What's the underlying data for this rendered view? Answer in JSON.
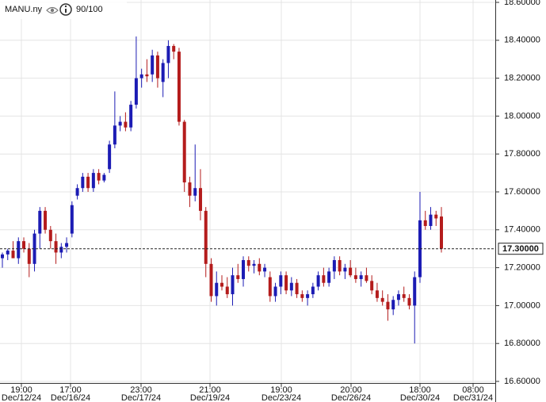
{
  "chart_data": {
    "type": "candlestick",
    "symbol": "MANU.ny",
    "counter": "90/100",
    "up_color": "#1c1cb4",
    "down_color": "#b41c1c",
    "grid": true,
    "ylim": [
      16.6,
      18.6
    ],
    "yticks": [
      {
        "value": 16.6,
        "label": "16.60000"
      },
      {
        "value": 16.8,
        "label": "16.80000"
      },
      {
        "value": 17.0,
        "label": "17.00000"
      },
      {
        "value": 17.2,
        "label": "17.20000"
      },
      {
        "value": 17.4,
        "label": "17.40000"
      },
      {
        "value": 17.6,
        "label": "17.60000"
      },
      {
        "value": 17.8,
        "label": "17.80000"
      },
      {
        "value": 18.0,
        "label": "18.00000"
      },
      {
        "value": 18.2,
        "label": "18.20000"
      },
      {
        "value": 18.4,
        "label": "18.40000"
      },
      {
        "value": 18.6,
        "label": "18.60000"
      }
    ],
    "last_price": {
      "value": 17.3,
      "label": "17.30000"
    },
    "xticks": [
      {
        "time": "19:00",
        "date": "Dec/12/24"
      },
      {
        "time": "17:00",
        "date": "Dec/16/24"
      },
      {
        "time": "23:00",
        "date": "Dec/17/24"
      },
      {
        "time": "21:00",
        "date": "Dec/19/24"
      },
      {
        "time": "19:00",
        "date": "Dec/23/24"
      },
      {
        "time": "20:00",
        "date": "Dec/26/24"
      },
      {
        "time": "18:00",
        "date": "Dec/30/24"
      },
      {
        "time": "08:00",
        "date": "Dec/31/24"
      }
    ],
    "open": [
      17.25,
      17.27,
      17.29,
      17.25,
      17.34,
      17.3,
      17.22,
      17.38,
      17.5,
      17.4,
      17.34,
      17.28,
      17.31,
      17.38,
      17.58,
      17.62,
      17.68,
      17.62,
      17.7,
      17.66,
      17.72,
      17.85,
      17.95,
      17.97,
      17.94,
      18.06,
      18.2,
      18.22,
      18.22,
      18.32,
      18.18,
      18.28,
      18.37,
      18.34,
      17.97,
      17.65,
      17.58,
      17.62,
      17.5,
      17.22,
      17.05,
      17.12,
      17.1,
      17.06,
      17.16,
      17.14,
      17.24,
      17.21,
      17.22,
      17.18,
      17.15,
      17.05,
      17.1,
      17.16,
      17.08,
      17.12,
      17.06,
      17.04,
      17.06,
      17.1,
      17.16,
      17.12,
      17.18,
      17.24,
      17.18,
      17.2,
      17.16,
      17.14,
      17.16,
      17.13,
      17.08,
      17.04,
      17.02,
      16.98,
      17.03,
      17.06,
      17.04,
      17.0,
      17.15,
      17.45,
      17.42,
      17.48,
      17.47
    ],
    "high": [
      17.28,
      17.3,
      17.34,
      17.36,
      17.36,
      17.33,
      17.4,
      17.52,
      17.52,
      17.42,
      17.38,
      17.33,
      17.36,
      17.55,
      17.64,
      17.7,
      17.7,
      17.72,
      17.72,
      17.7,
      17.87,
      18.13,
      18.0,
      18.02,
      18.08,
      18.42,
      18.25,
      18.3,
      18.35,
      18.34,
      18.3,
      18.4,
      18.38,
      18.36,
      17.98,
      17.68,
      17.85,
      17.72,
      17.52,
      17.25,
      17.18,
      17.16,
      17.15,
      17.2,
      17.22,
      17.26,
      17.26,
      17.24,
      17.25,
      17.22,
      17.18,
      17.12,
      17.18,
      17.18,
      17.15,
      17.14,
      17.08,
      17.08,
      17.12,
      17.18,
      17.2,
      17.2,
      17.26,
      17.26,
      17.22,
      17.24,
      17.2,
      17.18,
      17.2,
      17.16,
      17.12,
      17.08,
      17.06,
      17.05,
      17.08,
      17.1,
      17.06,
      17.18,
      17.6,
      17.5,
      17.52,
      17.5,
      17.52
    ],
    "low": [
      17.2,
      17.24,
      17.26,
      17.22,
      17.28,
      17.15,
      17.18,
      17.3,
      17.38,
      17.3,
      17.22,
      17.25,
      17.28,
      17.36,
      17.56,
      17.6,
      17.6,
      17.6,
      17.64,
      17.65,
      17.7,
      17.83,
      17.92,
      17.92,
      17.92,
      18.04,
      18.15,
      18.18,
      18.18,
      18.15,
      18.1,
      18.2,
      18.3,
      17.95,
      17.6,
      17.52,
      17.55,
      17.45,
      17.15,
      17.02,
      17.0,
      17.08,
      17.04,
      17.0,
      17.12,
      17.1,
      17.18,
      17.17,
      17.16,
      17.15,
      17.02,
      17.02,
      17.06,
      17.06,
      17.05,
      17.04,
      17.02,
      17.0,
      17.04,
      17.08,
      17.1,
      17.1,
      17.14,
      17.16,
      17.14,
      17.15,
      17.12,
      17.1,
      17.12,
      17.06,
      17.02,
      17.0,
      16.92,
      16.95,
      17.0,
      17.02,
      16.98,
      16.8,
      17.12,
      17.4,
      17.4,
      17.42,
      17.28
    ],
    "close": [
      17.27,
      17.29,
      17.25,
      17.34,
      17.3,
      17.22,
      17.38,
      17.5,
      17.4,
      17.34,
      17.28,
      17.31,
      17.33,
      17.53,
      17.62,
      17.68,
      17.62,
      17.7,
      17.66,
      17.69,
      17.85,
      17.95,
      17.97,
      17.94,
      18.06,
      18.2,
      18.22,
      18.21,
      18.32,
      18.2,
      18.28,
      18.37,
      18.34,
      17.97,
      17.65,
      17.58,
      17.62,
      17.5,
      17.22,
      17.05,
      17.12,
      17.1,
      17.06,
      17.16,
      17.14,
      17.24,
      17.21,
      17.22,
      17.18,
      17.2,
      17.05,
      17.1,
      17.16,
      17.08,
      17.12,
      17.06,
      17.04,
      17.06,
      17.1,
      17.16,
      17.12,
      17.18,
      17.24,
      17.18,
      17.2,
      17.16,
      17.14,
      17.16,
      17.13,
      17.08,
      17.04,
      17.02,
      16.98,
      17.03,
      17.06,
      17.04,
      17.0,
      17.15,
      17.45,
      17.42,
      17.48,
      17.46,
      17.3
    ]
  }
}
